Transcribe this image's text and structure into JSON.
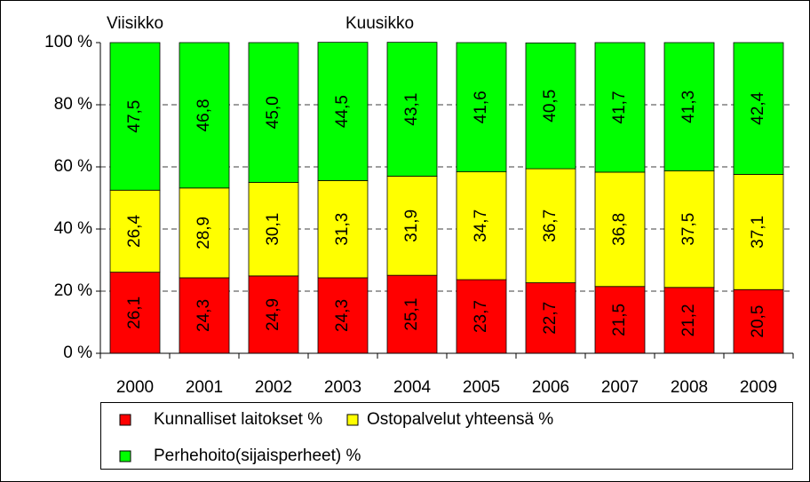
{
  "chart_data": {
    "type": "bar",
    "stacked": true,
    "annotations": [
      "Viisikko",
      "Kuusikko"
    ],
    "categories": [
      "2000",
      "2001",
      "2002",
      "2003",
      "2004",
      "2005",
      "2006",
      "2007",
      "2008",
      "2009"
    ],
    "series": [
      {
        "name": "Kunnalliset laitokset %",
        "color": "#ff0000",
        "values": [
          26.1,
          24.3,
          24.9,
          24.3,
          25.1,
          23.7,
          22.7,
          21.5,
          21.2,
          20.5
        ],
        "value_labels": [
          "26,1",
          "24,3",
          "24,9",
          "24,3",
          "25,1",
          "23,7",
          "22,7",
          "21,5",
          "21,2",
          "20,5"
        ]
      },
      {
        "name": "Ostopalvelut yhteensä %",
        "color": "#ffff00",
        "values": [
          26.4,
          28.9,
          30.1,
          31.3,
          31.9,
          34.7,
          36.7,
          36.8,
          37.5,
          37.1
        ],
        "value_labels": [
          "26,4",
          "28,9",
          "30,1",
          "31,3",
          "31,9",
          "34,7",
          "36,7",
          "36,8",
          "37,5",
          "37,1"
        ]
      },
      {
        "name": "Perhehoito(sijaisperheet) %",
        "color": "#00ff00",
        "values": [
          47.5,
          46.8,
          45.0,
          44.5,
          43.1,
          41.6,
          40.5,
          41.7,
          41.3,
          42.4
        ],
        "value_labels": [
          "47,5",
          "46,8",
          "45,0",
          "44,5",
          "43,1",
          "41,6",
          "40,5",
          "41,7",
          "41,3",
          "42,4"
        ]
      }
    ],
    "ylim": [
      0,
      100
    ],
    "yticks": [
      {
        "value": 0,
        "label": "0 %"
      },
      {
        "value": 20,
        "label": "20 %"
      },
      {
        "value": 40,
        "label": "40 %"
      },
      {
        "value": 60,
        "label": "60 %"
      },
      {
        "value": 80,
        "label": "80 %"
      },
      {
        "value": 100,
        "label": "100 %"
      }
    ],
    "grid": true
  }
}
